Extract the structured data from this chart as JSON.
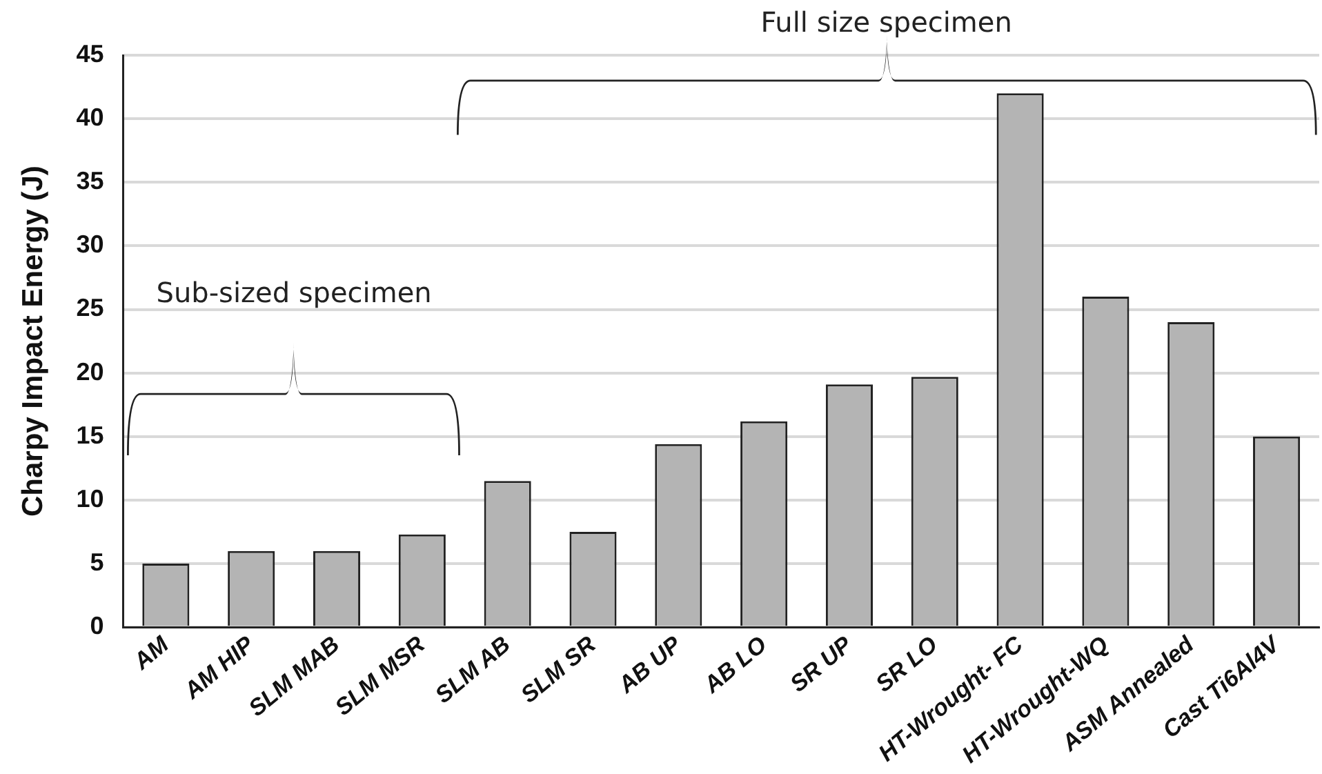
{
  "chart_data": {
    "type": "bar",
    "ylabel": "Charpy Impact Energy (J)",
    "categories": [
      "AM",
      "AM HIP",
      "SLM MAB",
      "SLM MSR",
      "SLM AB",
      "SLM SR",
      "AB UP",
      "AB LO",
      "SR UP",
      "SR LO",
      "HT-Wrought- FC",
      "HT-Wrought-WQ",
      "ASM Annealed",
      "Cast Ti6Al4V"
    ],
    "values": [
      5,
      6,
      6,
      7.3,
      11.5,
      7.5,
      14.4,
      16.2,
      19.1,
      19.7,
      42,
      26,
      24,
      15
    ],
    "color": "#b4b4b4",
    "ylim": [
      0,
      45
    ],
    "yticks": [
      0,
      5,
      10,
      15,
      20,
      25,
      30,
      35,
      40,
      45
    ],
    "grid": "y",
    "legend": false,
    "annotations": [
      "Full size specimen",
      "Sub-sized specimen"
    ]
  }
}
